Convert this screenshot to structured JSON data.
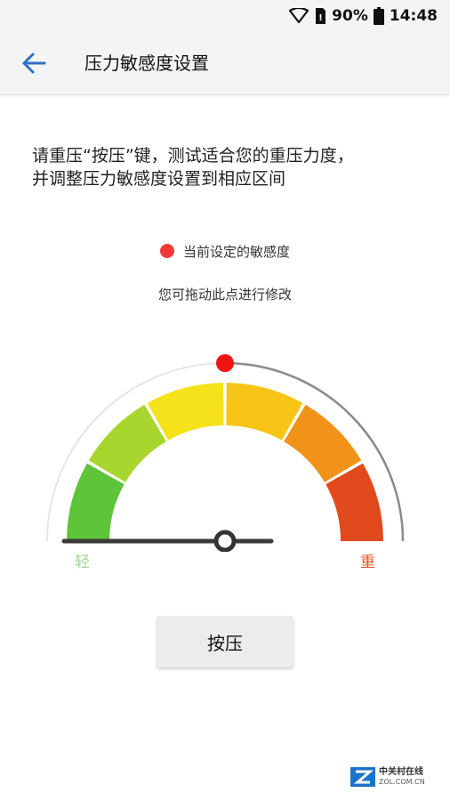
{
  "status_bar": {
    "battery_percent": "90%",
    "time": "14:48"
  },
  "app_bar": {
    "title": "压力敏感度设置"
  },
  "instruction": {
    "line1": "请重压“按压”键，测试适合您的重压力度，",
    "line2": "并调整压力敏感度设置到相应区间"
  },
  "legend": {
    "label": "当前设定的敏感度",
    "dot_color": "#ef3a3a"
  },
  "hint": "您可拖动此点进行修改",
  "gauge": {
    "min_label": "轻",
    "max_label": "重",
    "segment_colors": [
      "#5ec43a",
      "#a8d62e",
      "#f5e21a",
      "#f8c516",
      "#f19318",
      "#e14a1d"
    ],
    "marker_color": "#ef1515",
    "current_level": 0.5
  },
  "press_button": {
    "label": "按压"
  },
  "watermark": {
    "brand_cn": "中关村在线",
    "brand_en": "ZOL.COM.CN"
  }
}
